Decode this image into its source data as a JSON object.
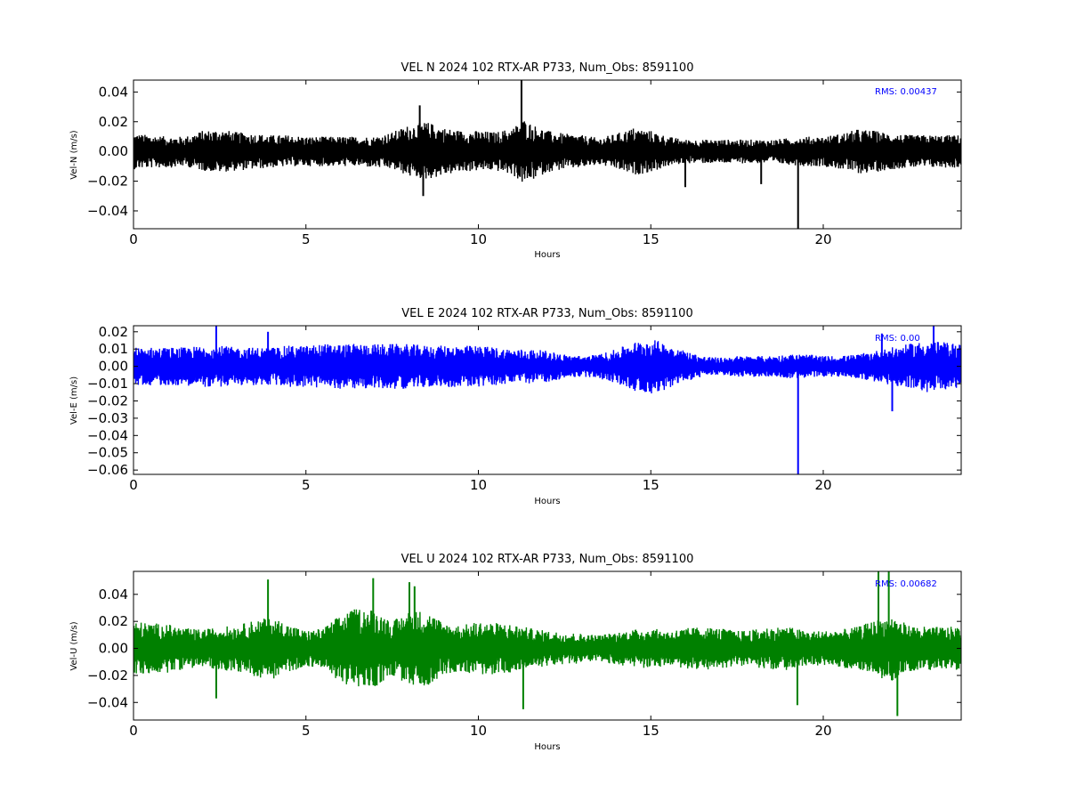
{
  "chart_data": [
    {
      "type": "line",
      "title": "VEL N 2024 102 RTX-AR  P733, Num_Obs: 8591100",
      "xlabel": "Hours",
      "ylabel": "Vel-N (m/s)",
      "xlim": [
        0,
        24
      ],
      "ylim": [
        -0.052,
        0.048
      ],
      "xticks": [
        0,
        5,
        10,
        15,
        20
      ],
      "xtick_labels": [
        "0",
        "5",
        "10",
        "15",
        "20"
      ],
      "yticks": [
        -0.04,
        -0.02,
        0.0,
        0.02,
        0.04
      ],
      "ytick_labels": [
        "−0.04",
        "−0.02",
        "0.00",
        "0.02",
        "0.04"
      ],
      "grid": false,
      "color": "#000000",
      "rms_text": "RMS:  0.00437",
      "rms_color": "#0000ff",
      "series": [
        {
          "values": [
            [
              0,
              0.012,
              -0.012
            ],
            [
              0.5,
              0.011,
              -0.011
            ],
            [
              1,
              0.01,
              -0.011
            ],
            [
              1.5,
              0.01,
              -0.01
            ],
            [
              2,
              0.014,
              -0.013
            ],
            [
              2.5,
              0.015,
              -0.014
            ],
            [
              3,
              0.013,
              -0.013
            ],
            [
              3.5,
              0.012,
              -0.012
            ],
            [
              4,
              0.011,
              -0.011
            ],
            [
              4.5,
              0.011,
              -0.01
            ],
            [
              5,
              0.01,
              -0.01
            ],
            [
              5.5,
              0.01,
              -0.01
            ],
            [
              6,
              0.01,
              -0.01
            ],
            [
              6.5,
              0.01,
              -0.01
            ],
            [
              7,
              0.01,
              -0.011
            ],
            [
              7.5,
              0.013,
              -0.012
            ],
            [
              8,
              0.018,
              -0.017
            ],
            [
              8.5,
              0.02,
              -0.019
            ],
            [
              9,
              0.016,
              -0.016
            ],
            [
              9.5,
              0.014,
              -0.014
            ],
            [
              10,
              0.014,
              -0.013
            ],
            [
              10.5,
              0.013,
              -0.013
            ],
            [
              11,
              0.016,
              -0.016
            ],
            [
              11.3,
              0.022,
              -0.022
            ],
            [
              11.6,
              0.018,
              -0.019
            ],
            [
              12,
              0.014,
              -0.014
            ],
            [
              12.5,
              0.012,
              -0.012
            ],
            [
              13,
              0.011,
              -0.011
            ],
            [
              13.5,
              0.009,
              -0.009
            ],
            [
              14,
              0.012,
              -0.012
            ],
            [
              14.5,
              0.016,
              -0.016
            ],
            [
              15,
              0.014,
              -0.014
            ],
            [
              15.5,
              0.01,
              -0.01
            ],
            [
              16,
              0.008,
              -0.008
            ],
            [
              16.5,
              0.008,
              -0.008
            ],
            [
              17,
              0.008,
              -0.008
            ],
            [
              17.5,
              0.008,
              -0.008
            ],
            [
              18,
              0.008,
              -0.008
            ],
            [
              18.5,
              0.008,
              -0.008
            ],
            [
              19,
              0.009,
              -0.009
            ],
            [
              19.5,
              0.01,
              -0.01
            ],
            [
              20,
              0.01,
              -0.01
            ],
            [
              20.5,
              0.012,
              -0.012
            ],
            [
              21,
              0.015,
              -0.015
            ],
            [
              21.5,
              0.014,
              -0.014
            ],
            [
              22,
              0.012,
              -0.012
            ],
            [
              22.5,
              0.011,
              -0.011
            ],
            [
              23,
              0.011,
              -0.011
            ],
            [
              23.5,
              0.011,
              -0.011
            ],
            [
              24,
              0.011,
              -0.011
            ]
          ],
          "spikes": [
            [
              11.25,
              0.048
            ],
            [
              19.27,
              -0.052
            ],
            [
              8.3,
              0.031
            ],
            [
              8.4,
              -0.03
            ],
            [
              18.2,
              -0.022
            ],
            [
              16.0,
              -0.024
            ]
          ]
        }
      ]
    },
    {
      "type": "line",
      "title": "VEL E 2024 102 RTX-AR  P733, Num_Obs: 8591100",
      "xlabel": "Hours",
      "ylabel": "Vel-E (m/s)",
      "xlim": [
        0,
        24
      ],
      "ylim": [
        -0.0625,
        0.0235
      ],
      "xticks": [
        0,
        5,
        10,
        15,
        20
      ],
      "xtick_labels": [
        "0",
        "5",
        "10",
        "15",
        "20"
      ],
      "yticks": [
        -0.06,
        -0.05,
        -0.04,
        -0.03,
        -0.02,
        -0.01,
        0.0,
        0.01,
        0.02
      ],
      "ytick_labels": [
        "−0.06",
        "−0.05",
        "−0.04",
        "−0.03",
        "−0.02",
        "−0.01",
        "0.00",
        "0.01",
        "0.02"
      ],
      "grid": false,
      "color": "#0000ff",
      "rms_text": "RMS:  0.00",
      "rms_color": "#0000ff",
      "series": [
        {
          "values": [
            [
              0,
              0.011,
              -0.011
            ],
            [
              0.5,
              0.011,
              -0.011
            ],
            [
              1,
              0.011,
              -0.011
            ],
            [
              1.5,
              0.011,
              -0.011
            ],
            [
              2,
              0.012,
              -0.012
            ],
            [
              2.5,
              0.012,
              -0.012
            ],
            [
              3,
              0.011,
              -0.011
            ],
            [
              3.5,
              0.011,
              -0.011
            ],
            [
              4,
              0.011,
              -0.011
            ],
            [
              4.5,
              0.012,
              -0.012
            ],
            [
              5,
              0.012,
              -0.012
            ],
            [
              5.5,
              0.013,
              -0.013
            ],
            [
              6,
              0.013,
              -0.013
            ],
            [
              6.5,
              0.013,
              -0.013
            ],
            [
              7,
              0.013,
              -0.013
            ],
            [
              7.5,
              0.013,
              -0.013
            ],
            [
              8,
              0.013,
              -0.013
            ],
            [
              8.5,
              0.012,
              -0.012
            ],
            [
              9,
              0.012,
              -0.012
            ],
            [
              9.5,
              0.012,
              -0.012
            ],
            [
              10,
              0.012,
              -0.012
            ],
            [
              10.5,
              0.011,
              -0.011
            ],
            [
              11,
              0.01,
              -0.01
            ],
            [
              11.5,
              0.01,
              -0.01
            ],
            [
              12,
              0.009,
              -0.009
            ],
            [
              12.5,
              0.007,
              -0.007
            ],
            [
              13,
              0.006,
              -0.006
            ],
            [
              13.5,
              0.007,
              -0.007
            ],
            [
              14,
              0.01,
              -0.01
            ],
            [
              14.5,
              0.014,
              -0.014
            ],
            [
              15,
              0.016,
              -0.016
            ],
            [
              15.5,
              0.013,
              -0.013
            ],
            [
              16,
              0.009,
              -0.009
            ],
            [
              16.5,
              0.006,
              -0.006
            ],
            [
              17,
              0.005,
              -0.005
            ],
            [
              17.5,
              0.006,
              -0.006
            ],
            [
              18,
              0.006,
              -0.006
            ],
            [
              18.5,
              0.006,
              -0.006
            ],
            [
              19,
              0.007,
              -0.007
            ],
            [
              19.5,
              0.007,
              -0.007
            ],
            [
              20,
              0.006,
              -0.006
            ],
            [
              20.5,
              0.006,
              -0.006
            ],
            [
              21,
              0.007,
              -0.007
            ],
            [
              21.5,
              0.009,
              -0.009
            ],
            [
              22,
              0.011,
              -0.011
            ],
            [
              22.5,
              0.013,
              -0.013
            ],
            [
              23,
              0.015,
              -0.015
            ],
            [
              23.5,
              0.014,
              -0.014
            ],
            [
              24,
              0.013,
              -0.013
            ]
          ],
          "spikes": [
            [
              19.27,
              -0.0625
            ],
            [
              2.4,
              0.0235
            ],
            [
              3.9,
              0.02
            ],
            [
              22.0,
              -0.026
            ],
            [
              23.2,
              0.0235
            ],
            [
              21.7,
              0.019
            ]
          ]
        }
      ]
    },
    {
      "type": "line",
      "title": "VEL U 2024 102 RTX-AR  P733, Num_Obs: 8591100",
      "xlabel": "Hours",
      "ylabel": "Vel-U (m/s)",
      "xlim": [
        0,
        24
      ],
      "ylim": [
        -0.053,
        0.057
      ],
      "xticks": [
        0,
        5,
        10,
        15,
        20
      ],
      "xtick_labels": [
        "0",
        "5",
        "10",
        "15",
        "20"
      ],
      "yticks": [
        -0.04,
        -0.02,
        0.0,
        0.02,
        0.04
      ],
      "ytick_labels": [
        "−0.04",
        "−0.02",
        "0.00",
        "0.02",
        "0.04"
      ],
      "grid": false,
      "color": "#008000",
      "rms_text": "RMS:  0.00682",
      "rms_color": "#0000ff",
      "series": [
        {
          "values": [
            [
              0,
              0.02,
              -0.02
            ],
            [
              0.5,
              0.019,
              -0.019
            ],
            [
              1,
              0.018,
              -0.018
            ],
            [
              1.5,
              0.015,
              -0.015
            ],
            [
              2,
              0.014,
              -0.014
            ],
            [
              2.5,
              0.016,
              -0.016
            ],
            [
              3,
              0.017,
              -0.017
            ],
            [
              3.5,
              0.021,
              -0.021
            ],
            [
              4,
              0.023,
              -0.023
            ],
            [
              4.5,
              0.018,
              -0.018
            ],
            [
              5,
              0.013,
              -0.013
            ],
            [
              5.5,
              0.015,
              -0.015
            ],
            [
              6,
              0.025,
              -0.025
            ],
            [
              6.5,
              0.03,
              -0.03
            ],
            [
              7,
              0.029,
              -0.029
            ],
            [
              7.5,
              0.02,
              -0.02
            ],
            [
              8,
              0.028,
              -0.028
            ],
            [
              8.5,
              0.028,
              -0.028
            ],
            [
              9,
              0.019,
              -0.019
            ],
            [
              9.5,
              0.017,
              -0.017
            ],
            [
              10,
              0.02,
              -0.02
            ],
            [
              10.5,
              0.019,
              -0.019
            ],
            [
              11,
              0.018,
              -0.018
            ],
            [
              11.5,
              0.015,
              -0.015
            ],
            [
              12,
              0.013,
              -0.013
            ],
            [
              12.5,
              0.012,
              -0.012
            ],
            [
              13,
              0.011,
              -0.011
            ],
            [
              13.5,
              0.01,
              -0.01
            ],
            [
              14,
              0.012,
              -0.012
            ],
            [
              14.5,
              0.014,
              -0.014
            ],
            [
              15,
              0.015,
              -0.015
            ],
            [
              15.5,
              0.013,
              -0.013
            ],
            [
              16,
              0.015,
              -0.015
            ],
            [
              16.5,
              0.016,
              -0.016
            ],
            [
              17,
              0.015,
              -0.015
            ],
            [
              17.5,
              0.013,
              -0.013
            ],
            [
              18,
              0.014,
              -0.014
            ],
            [
              18.5,
              0.016,
              -0.016
            ],
            [
              19,
              0.016,
              -0.016
            ],
            [
              19.5,
              0.013,
              -0.013
            ],
            [
              20,
              0.013,
              -0.013
            ],
            [
              20.5,
              0.014,
              -0.014
            ],
            [
              21,
              0.016,
              -0.016
            ],
            [
              21.5,
              0.021,
              -0.021
            ],
            [
              22,
              0.024,
              -0.024
            ],
            [
              22.5,
              0.017,
              -0.017
            ],
            [
              23,
              0.016,
              -0.016
            ],
            [
              23.5,
              0.016,
              -0.016
            ],
            [
              24,
              0.016,
              -0.016
            ]
          ],
          "spikes": [
            [
              3.9,
              0.051
            ],
            [
              6.95,
              0.052
            ],
            [
              8.0,
              0.049
            ],
            [
              8.15,
              0.046
            ],
            [
              11.3,
              -0.045
            ],
            [
              21.6,
              0.057
            ],
            [
              21.9,
              0.057
            ],
            [
              22.15,
              -0.05
            ],
            [
              19.25,
              -0.042
            ],
            [
              2.4,
              -0.037
            ]
          ]
        }
      ]
    }
  ]
}
